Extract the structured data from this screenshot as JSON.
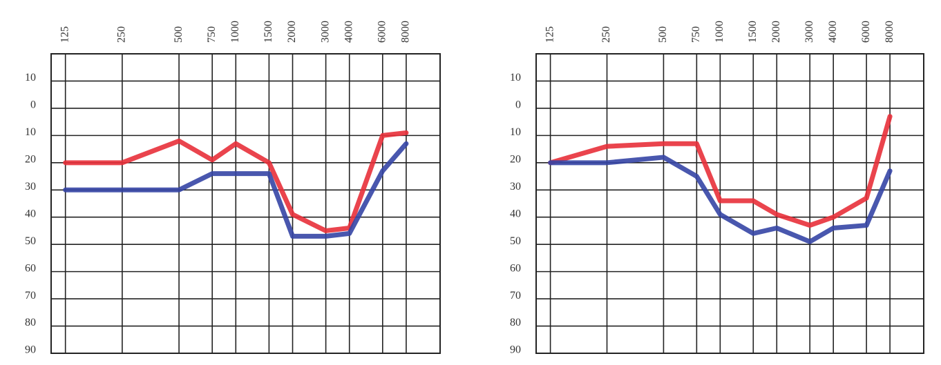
{
  "chart_data": [
    {
      "type": "line",
      "x": [
        125,
        250,
        500,
        750,
        1000,
        1500,
        2000,
        3000,
        4000,
        6000,
        8000
      ],
      "series": [
        {
          "color": "#e8303a",
          "values": [
            20,
            20,
            12,
            19,
            13,
            20,
            39,
            45,
            44,
            10,
            9
          ]
        },
        {
          "color": "#3545a5",
          "values": [
            30,
            30,
            30,
            24,
            24,
            24,
            47,
            47,
            46,
            23,
            13
          ]
        }
      ],
      "xscale": "log",
      "xlim": [
        105,
        12100
      ],
      "xticks": [
        125,
        250,
        500,
        750,
        1000,
        1500,
        2000,
        3000,
        4000,
        6000,
        8000
      ],
      "ylim": [
        90,
        -20
      ],
      "yticks": [
        {
          "value": -10,
          "label": "10"
        },
        0,
        10,
        20,
        30,
        40,
        50,
        60,
        70,
        80,
        90
      ],
      "grid": true
    },
    {
      "type": "line",
      "x": [
        125,
        250,
        500,
        750,
        1000,
        1500,
        2000,
        3000,
        4000,
        6000,
        8000
      ],
      "series": [
        {
          "color": "#e8303a",
          "values": [
            20,
            14,
            13,
            13,
            34,
            34,
            39,
            43,
            40,
            33,
            3
          ]
        },
        {
          "color": "#3545a5",
          "values": [
            20,
            20,
            18,
            25,
            39,
            46,
            44,
            49,
            44,
            43,
            23
          ]
        }
      ],
      "xscale": "log",
      "xlim": [
        105,
        12100
      ],
      "xticks": [
        125,
        250,
        500,
        750,
        1000,
        1500,
        2000,
        3000,
        4000,
        6000,
        8000
      ],
      "ylim": [
        90,
        -20
      ],
      "yticks": [
        {
          "value": -10,
          "label": "10"
        },
        0,
        10,
        20,
        30,
        40,
        50,
        60,
        70,
        80,
        90
      ],
      "grid": true
    }
  ]
}
